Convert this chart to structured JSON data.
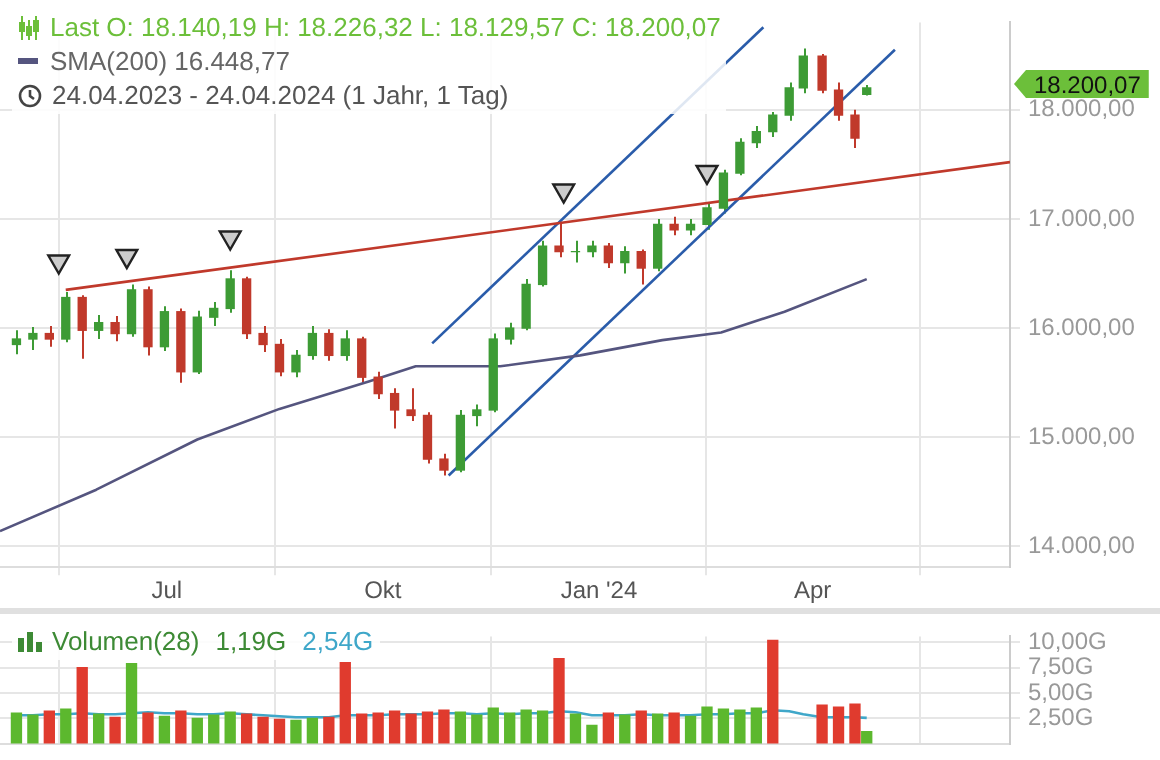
{
  "chart_data": [
    {
      "type": "candlestick",
      "title": "Last  O: 18.140,19  H: 18.226,32  L: 18.129,57  C: 18.200,07",
      "subtitle": "24.04.2023 - 24.04.2024  (1 Jahr, 1 Tag)",
      "x": [
        "2023-04-28",
        "2023-05-05",
        "2023-05-12",
        "2023-05-19",
        "2023-05-26",
        "2023-06-02",
        "2023-06-09",
        "2023-06-16",
        "2023-06-23",
        "2023-06-30",
        "2023-07-07",
        "2023-07-14",
        "2023-07-21",
        "2023-07-28",
        "2023-08-04",
        "2023-08-11",
        "2023-08-18",
        "2023-08-25",
        "2023-09-01",
        "2023-09-08",
        "2023-09-15",
        "2023-09-22",
        "2023-09-29",
        "2023-10-06",
        "2023-10-13",
        "2023-10-20",
        "2023-10-27",
        "2023-11-03",
        "2023-11-10",
        "2023-11-17",
        "2023-11-24",
        "2023-12-01",
        "2023-12-08",
        "2023-12-15",
        "2023-12-22",
        "2023-12-29",
        "2024-01-05",
        "2024-01-12",
        "2024-01-19",
        "2024-01-26",
        "2024-02-02",
        "2024-02-09",
        "2024-02-16",
        "2024-02-23",
        "2024-03-01",
        "2024-03-08",
        "2024-03-15",
        "2024-03-22",
        "2024-03-28",
        "2024-04-05",
        "2024-04-12",
        "2024-04-19",
        "2024-04-24"
      ],
      "ohlc": [
        [
          15850,
          15980,
          15760,
          15900
        ],
        [
          15900,
          16010,
          15800,
          15950
        ],
        [
          15950,
          16020,
          15830,
          15900
        ],
        [
          15900,
          16330,
          15870,
          16280
        ],
        [
          16280,
          16300,
          15720,
          15980
        ],
        [
          15980,
          16120,
          15900,
          16050
        ],
        [
          16050,
          16110,
          15880,
          15950
        ],
        [
          15950,
          16400,
          15920,
          16350
        ],
        [
          16350,
          16380,
          15750,
          15830
        ],
        [
          15830,
          16200,
          15790,
          16150
        ],
        [
          16150,
          16180,
          15500,
          15600
        ],
        [
          15600,
          16160,
          15580,
          16100
        ],
        [
          16100,
          16240,
          16020,
          16180
        ],
        [
          16180,
          16530,
          16140,
          16450
        ],
        [
          16450,
          16470,
          15900,
          15950
        ],
        [
          15950,
          16020,
          15780,
          15850
        ],
        [
          15850,
          15900,
          15560,
          15600
        ],
        [
          15600,
          15800,
          15550,
          15750
        ],
        [
          15750,
          16020,
          15710,
          15950
        ],
        [
          15950,
          15990,
          15700,
          15750
        ],
        [
          15750,
          15980,
          15700,
          15900
        ],
        [
          15900,
          15920,
          15500,
          15550
        ],
        [
          15550,
          15600,
          15350,
          15400
        ],
        [
          15400,
          15450,
          15080,
          15250
        ],
        [
          15250,
          15450,
          15150,
          15200
        ],
        [
          15200,
          15230,
          14760,
          14800
        ],
        [
          14800,
          14850,
          14650,
          14700
        ],
        [
          14700,
          15250,
          14680,
          15200
        ],
        [
          15200,
          15300,
          15100,
          15250
        ],
        [
          15250,
          15950,
          15230,
          15900
        ],
        [
          15900,
          16050,
          15850,
          16000
        ],
        [
          16000,
          16450,
          15980,
          16400
        ],
        [
          16400,
          16800,
          16380,
          16750
        ],
        [
          16750,
          16970,
          16650,
          16700
        ],
        [
          16700,
          16800,
          16600,
          16700
        ],
        [
          16700,
          16800,
          16650,
          16750
        ],
        [
          16750,
          16780,
          16550,
          16600
        ],
        [
          16600,
          16750,
          16500,
          16700
        ],
        [
          16700,
          16720,
          16400,
          16550
        ],
        [
          16550,
          17000,
          16520,
          16950
        ],
        [
          16950,
          17020,
          16850,
          16900
        ],
        [
          16900,
          17000,
          16850,
          16950
        ],
        [
          16950,
          17140,
          16900,
          17100
        ],
        [
          17100,
          17450,
          17050,
          17420
        ],
        [
          17420,
          17740,
          17400,
          17700
        ],
        [
          17700,
          17850,
          17650,
          17800
        ],
        [
          17800,
          17980,
          17750,
          17950
        ],
        [
          17950,
          18250,
          17900,
          18200
        ],
        [
          18200,
          18560,
          18150,
          18490
        ],
        [
          18490,
          18510,
          18150,
          18180
        ],
        [
          18180,
          18250,
          17900,
          17950
        ],
        [
          17950,
          18000,
          17650,
          17740
        ],
        [
          18140.19,
          18226.32,
          18129.57,
          18200.07
        ]
      ],
      "series": [
        {
          "type": "line",
          "name": "SMA(200)  16.448,77",
          "color": "#55557f",
          "marker": "none",
          "x": [
            "2023-04-21",
            "2023-06-01",
            "2023-07-14",
            "2023-08-18",
            "2023-09-25",
            "2023-10-15",
            "2023-11-20",
            "2023-12-24",
            "2024-01-28",
            "2024-02-22",
            "2024-03-20",
            "2024-04-24"
          ],
          "values": [
            14140,
            14520,
            14980,
            15260,
            15510,
            15650,
            15650,
            15750,
            15890,
            15960,
            16150,
            16448.77
          ]
        },
        {
          "type": "line",
          "color": "#c0392b",
          "marker": "none",
          "x": [
            "2023-05-19",
            "2024-06-24"
          ],
          "values": [
            16350,
            17520
          ]
        },
        {
          "type": "line",
          "color": "#2a5caa",
          "marker": "none",
          "x": [
            "2023-10-22",
            "2024-03-11"
          ],
          "values": [
            15860,
            18755
          ]
        },
        {
          "type": "line",
          "color": "#2a5caa",
          "marker": "none",
          "x": [
            "2023-10-29",
            "2024-05-06"
          ],
          "values": [
            14650,
            18550
          ]
        },
        {
          "type": "scatter",
          "color": "#cccccc",
          "marker": "triangle",
          "x": [
            "2023-05-16",
            "2023-06-14",
            "2023-07-28",
            "2023-12-17",
            "2024-02-16"
          ],
          "values": [
            16610,
            16660,
            16830,
            17260,
            17430
          ]
        }
      ],
      "annotations": [
        "18.200,07"
      ],
      "xlim": [
        "2023-04-21",
        "2024-06-24"
      ],
      "xticks": [
        {
          "value": "2023-07-01",
          "label": "Jul"
        },
        {
          "value": "2023-10-01",
          "label": "Okt"
        },
        {
          "value": "2024-01-01",
          "label": "Jan '24"
        },
        {
          "value": "2024-04-01",
          "label": "Apr"
        }
      ],
      "ylim": [
        13810,
        18800
      ],
      "yticks": [
        {
          "value": 14000,
          "label": "14.000,00"
        },
        {
          "value": 15000,
          "label": "15.000,00"
        },
        {
          "value": 16000,
          "label": "16.000,00"
        },
        {
          "value": 17000,
          "label": "17.000,00"
        },
        {
          "value": 18000,
          "label": "18.000,00"
        }
      ],
      "grid": true,
      "legend": "top left"
    },
    {
      "type": "bar",
      "title": "Volumen(28)",
      "annotations": [
        "1,19G",
        "2,54G"
      ],
      "x": [
        "2023-04-28",
        "2023-05-05",
        "2023-05-12",
        "2023-05-19",
        "2023-05-26",
        "2023-06-02",
        "2023-06-09",
        "2023-06-16",
        "2023-06-23",
        "2023-06-30",
        "2023-07-07",
        "2023-07-14",
        "2023-07-21",
        "2023-07-28",
        "2023-08-04",
        "2023-08-11",
        "2023-08-18",
        "2023-08-25",
        "2023-09-01",
        "2023-09-08",
        "2023-09-15",
        "2023-09-22",
        "2023-09-29",
        "2023-10-06",
        "2023-10-13",
        "2023-10-20",
        "2023-10-27",
        "2023-11-03",
        "2023-11-10",
        "2023-11-17",
        "2023-11-24",
        "2023-12-01",
        "2023-12-08",
        "2023-12-15",
        "2023-12-22",
        "2023-12-29",
        "2024-01-05",
        "2024-01-12",
        "2024-01-19",
        "2024-01-26",
        "2024-02-02",
        "2024-02-09",
        "2024-02-16",
        "2024-02-23",
        "2024-03-01",
        "2024-03-08",
        "2024-03-15",
        "2024-03-22",
        "2024-03-28",
        "2024-04-05",
        "2024-04-12",
        "2024-04-19",
        "2024-04-24"
      ],
      "series": [
        {
          "type": "bar",
          "values": [
            3.0,
            2.8,
            3.2,
            3.4,
            7.5,
            2.9,
            2.6,
            7.9,
            3.0,
            2.7,
            3.2,
            2.5,
            2.8,
            3.1,
            2.9,
            2.6,
            2.4,
            2.3,
            2.5,
            2.6,
            8.0,
            2.9,
            3.0,
            3.2,
            2.9,
            3.1,
            3.3,
            3.1,
            2.8,
            3.5,
            3.0,
            3.3,
            3.2,
            8.4,
            2.9,
            1.8,
            3.0,
            2.8,
            3.2,
            2.9,
            3.0,
            2.7,
            3.6,
            3.4,
            3.3,
            3.5,
            10.2,
            null,
            null,
            3.8,
            3.6,
            3.9,
            1.19
          ],
          "colors": [
            "#5cb82e",
            "#5cb82e",
            "#e03b2e",
            "#5cb82e",
            "#e03b2e",
            "#5cb82e",
            "#e03b2e",
            "#5cb82e",
            "#e03b2e",
            "#5cb82e",
            "#e03b2e",
            "#5cb82e",
            "#5cb82e",
            "#5cb82e",
            "#e03b2e",
            "#e03b2e",
            "#e03b2e",
            "#5cb82e",
            "#5cb82e",
            "#e03b2e",
            "#e03b2e",
            "#e03b2e",
            "#e03b2e",
            "#e03b2e",
            "#e03b2e",
            "#e03b2e",
            "#e03b2e",
            "#5cb82e",
            "#5cb82e",
            "#5cb82e",
            "#5cb82e",
            "#5cb82e",
            "#5cb82e",
            "#e03b2e",
            "#5cb82e",
            "#5cb82e",
            "#e03b2e",
            "#5cb82e",
            "#e03b2e",
            "#5cb82e",
            "#e03b2e",
            "#5cb82e",
            "#5cb82e",
            "#5cb82e",
            "#5cb82e",
            "#5cb82e",
            "#e03b2e",
            "#5cb82e",
            "#5cb82e",
            "#e03b2e",
            "#e03b2e",
            "#e03b2e",
            "#5cb82e"
          ]
        },
        {
          "type": "line",
          "color": "#3fa7c9",
          "marker": "none",
          "values": [
            2.8,
            2.8,
            2.9,
            2.9,
            3.0,
            2.9,
            2.9,
            3.0,
            3.1,
            3.0,
            3.0,
            2.9,
            2.9,
            3.0,
            2.9,
            2.8,
            2.7,
            2.6,
            2.6,
            2.6,
            2.8,
            2.8,
            2.8,
            2.9,
            2.9,
            2.9,
            3.0,
            3.0,
            2.9,
            3.0,
            2.9,
            3.0,
            3.0,
            3.2,
            3.1,
            2.8,
            2.8,
            2.8,
            2.9,
            2.8,
            2.8,
            2.8,
            2.9,
            2.9,
            3.0,
            3.0,
            3.3,
            3.2,
            2.9,
            2.6,
            2.6,
            2.6,
            2.54
          ]
        }
      ],
      "xlim": [
        "2023-04-21",
        "2024-06-24"
      ],
      "xticks": [
        {
          "value": "2023-07-01",
          "label": null
        },
        {
          "value": "2023-10-01",
          "label": null
        },
        {
          "value": "2024-01-01",
          "label": null
        },
        {
          "value": "2024-04-01",
          "label": null
        }
      ],
      "ylim": [
        0,
        10.6
      ],
      "yticks": [
        {
          "value": 2.5,
          "label": "2,50G"
        },
        {
          "value": 5,
          "label": "5,00G"
        },
        {
          "value": 7.5,
          "label": "7,50G"
        },
        {
          "value": 10,
          "label": "10,00G"
        }
      ],
      "grid": true,
      "tick_labels": "y"
    }
  ]
}
